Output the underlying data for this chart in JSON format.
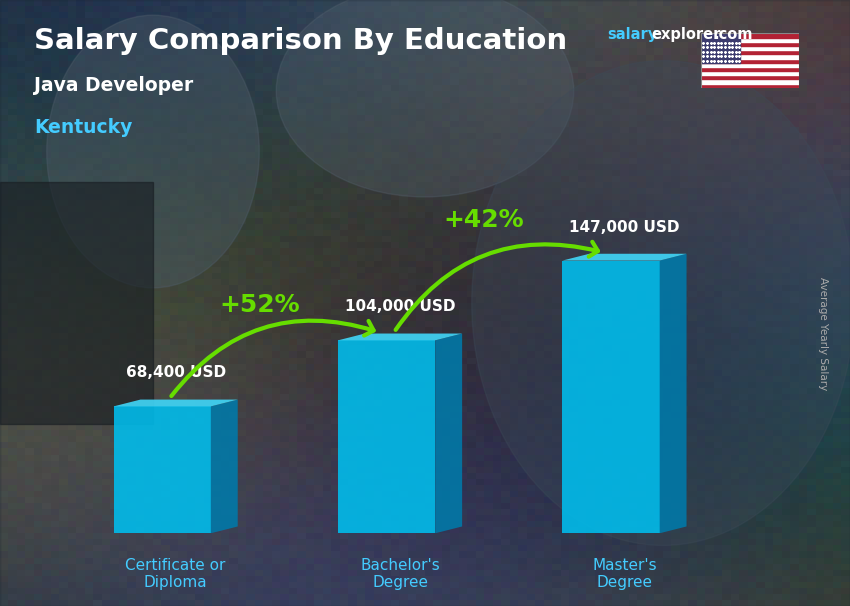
{
  "title_part1": "Salary Comparison By Education",
  "subtitle_job": "Java Developer",
  "subtitle_location": "Kentucky",
  "brand_salary": "salary",
  "brand_explorer": "explorer",
  "brand_dot_com": ".com",
  "ylabel": "Average Yearly Salary",
  "categories": [
    "Certificate or\nDiploma",
    "Bachelor's\nDegree",
    "Master's\nDegree"
  ],
  "values": [
    68400,
    104000,
    147000
  ],
  "value_labels": [
    "68,400 USD",
    "104,000 USD",
    "147,000 USD"
  ],
  "pct_labels": [
    "+52%",
    "+42%"
  ],
  "bar_face_color": "#00BFEF",
  "bar_side_color": "#007AAA",
  "bar_top_color": "#40D4F5",
  "arrow_color": "#66DD00",
  "pct_color": "#66DD00",
  "title_color": "#FFFFFF",
  "subtitle_job_color": "#FFFFFF",
  "subtitle_location_color": "#44CCFF",
  "value_label_color": "#FFFFFF",
  "cat_label_color": "#44CCFF",
  "ylabel_color": "#AAAAAA",
  "brand_color1": "#44CCFF",
  "brand_color2": "#FFFFFF",
  "bg_color": "#3d4e5e",
  "figsize": [
    8.5,
    6.06
  ],
  "dpi": 100
}
